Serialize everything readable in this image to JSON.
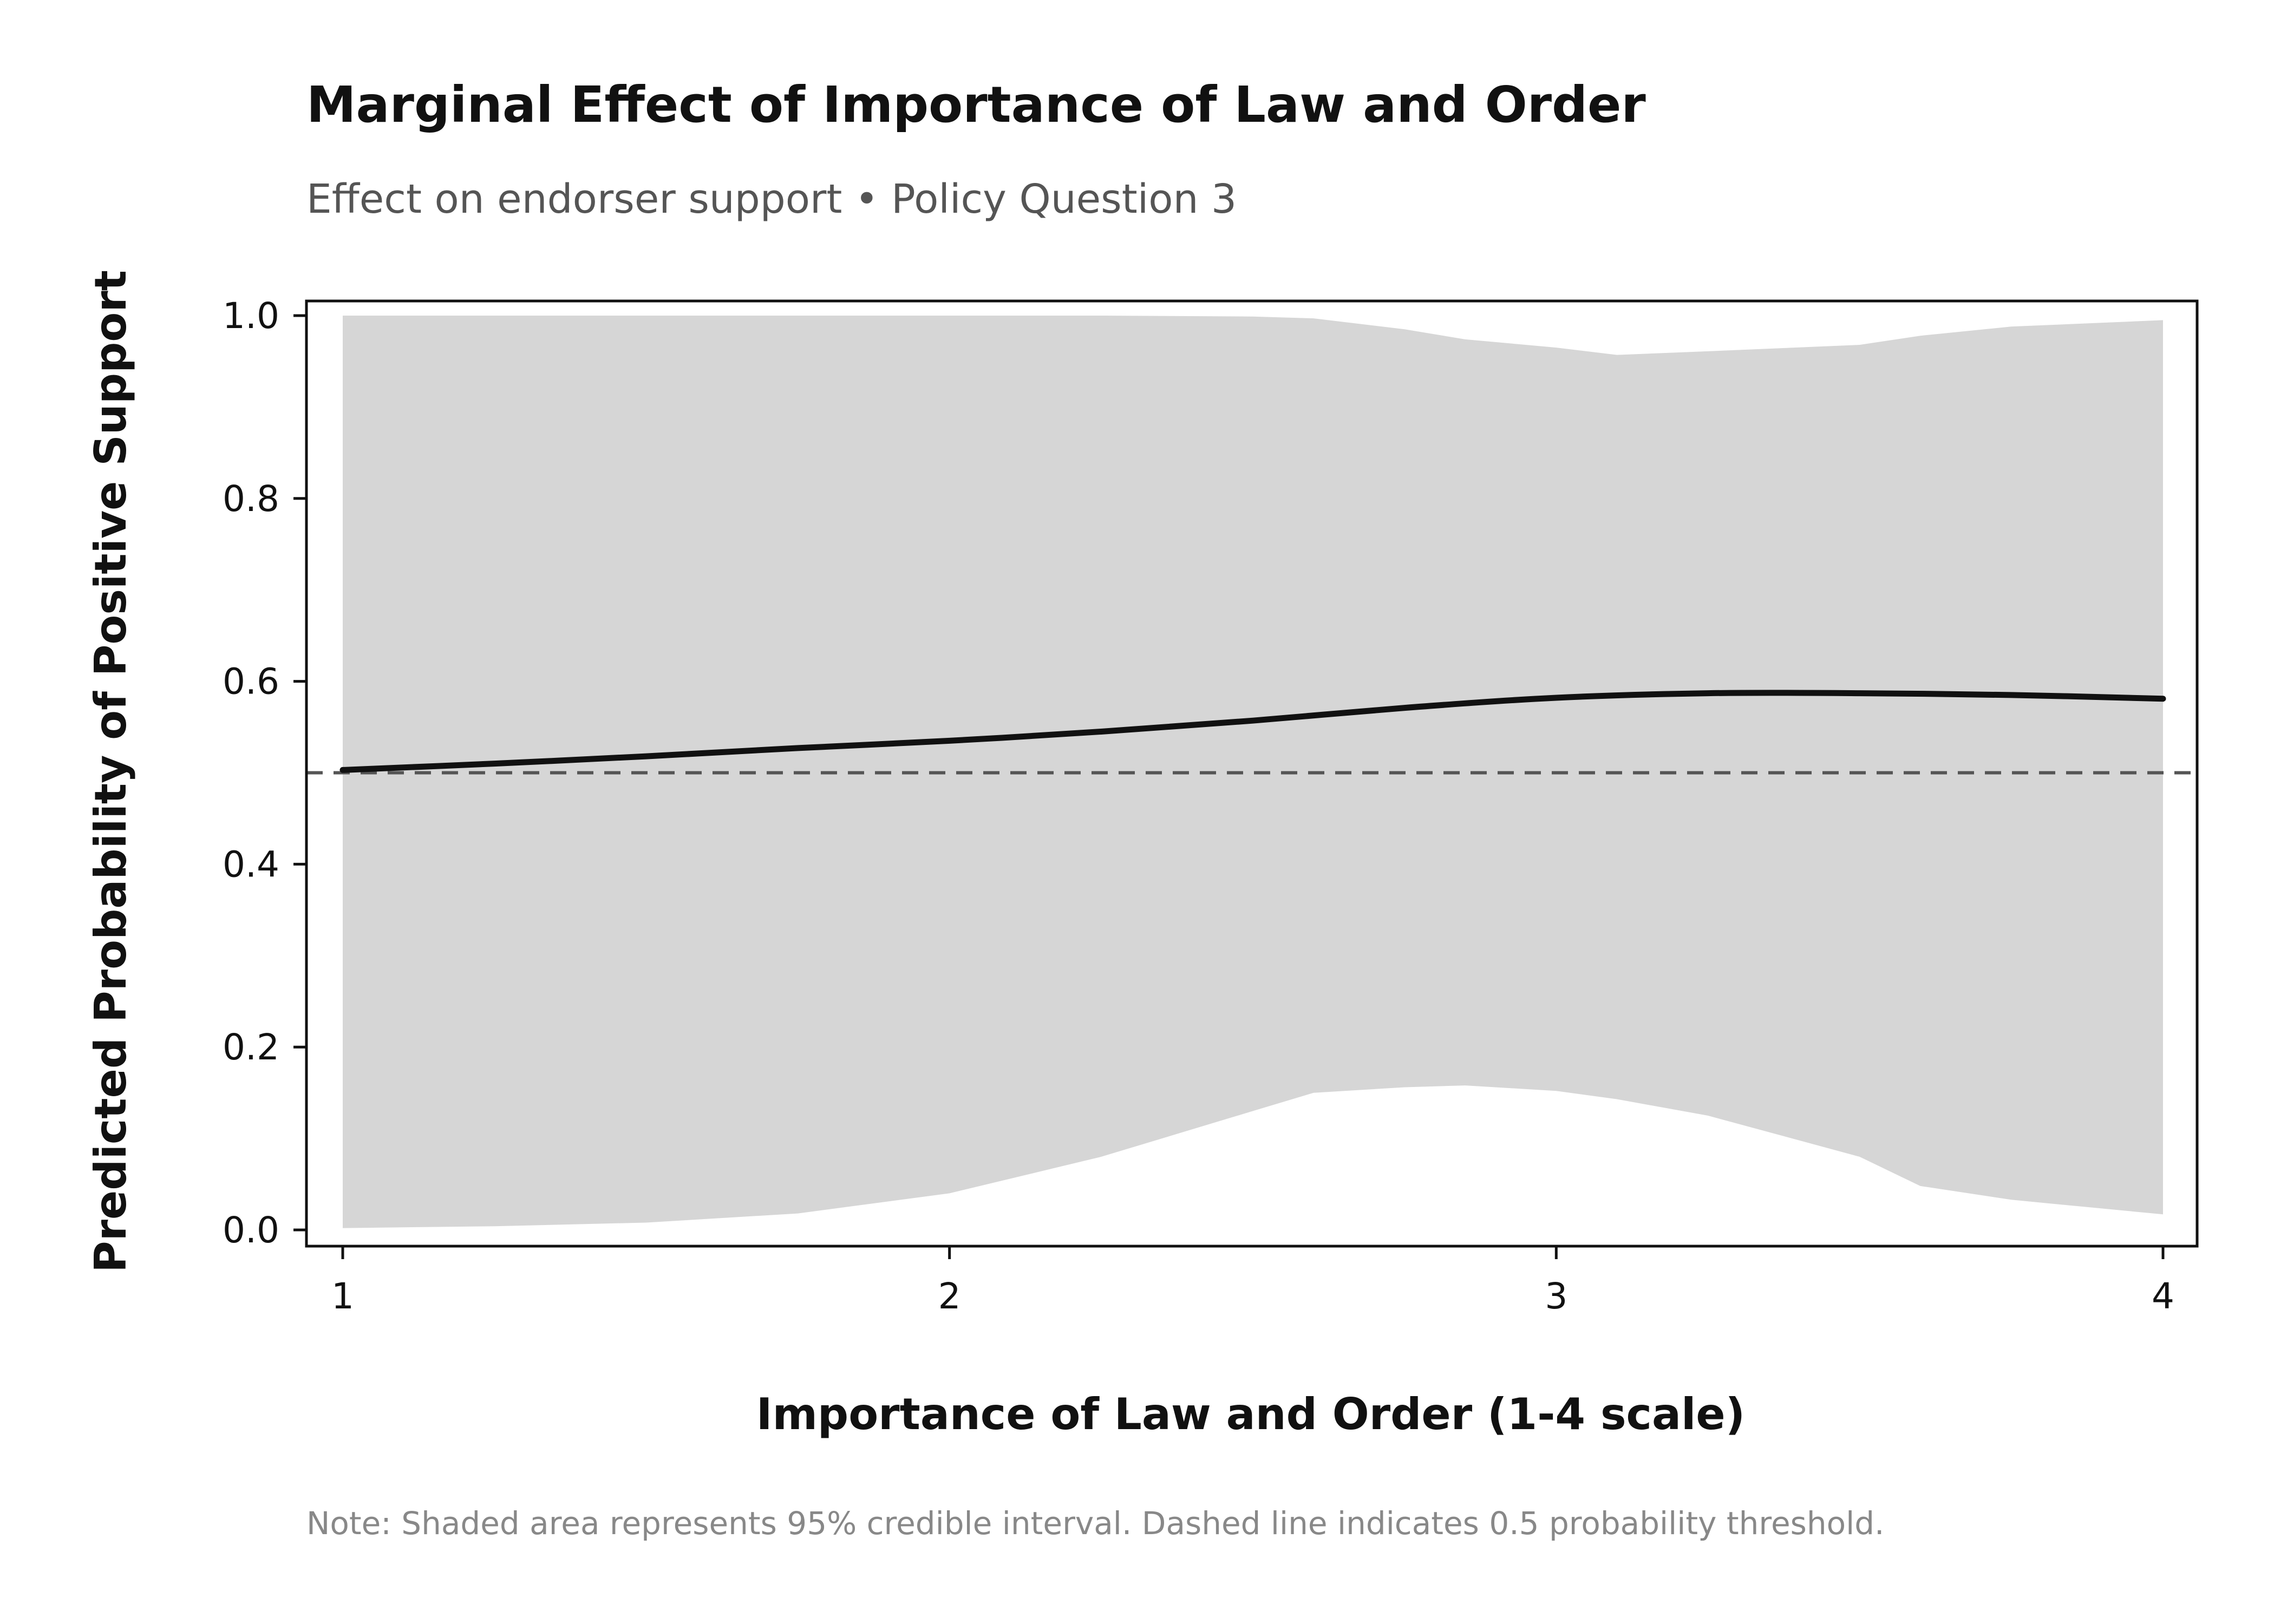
{
  "title": "Marginal Effect of Importance of Law and Order",
  "subtitle": "Effect on endorser support • Policy Question 3",
  "note": "Note: Shaded area represents 95% credible interval. Dashed line indicates 0.5 probability threshold.",
  "chart_data": {
    "type": "line",
    "title": "Marginal Effect of Importance of Law and Order",
    "subtitle": "Effect on endorser support • Policy Question 3",
    "xlabel": "Importance of Law and Order (1-4 scale)",
    "ylabel": "Predicted Probability of Positive Support",
    "xlim": [
      1,
      4
    ],
    "ylim": [
      0.0,
      1.0
    ],
    "x_ticks": [
      "1",
      "2",
      "3",
      "4"
    ],
    "y_ticks": [
      "0.0",
      "0.2",
      "0.4",
      "0.6",
      "0.8",
      "1.0"
    ],
    "grid": false,
    "series": [
      {
        "x": [
          1.0,
          1.25,
          1.5,
          1.75,
          2.0,
          2.25,
          2.5,
          2.75,
          3.0,
          3.25,
          3.5,
          3.75,
          4.0
        ],
        "values": [
          0.503,
          0.51,
          0.518,
          0.527,
          0.535,
          0.545,
          0.557,
          0.571,
          0.582,
          0.587,
          0.587,
          0.585,
          0.581
        ],
        "color": "#111111"
      }
    ],
    "interval": {
      "x": [
        1.0,
        1.25,
        1.5,
        1.75,
        2.0,
        2.25,
        2.5,
        2.6,
        2.75,
        2.85,
        3.0,
        3.1,
        3.25,
        3.5,
        3.6,
        3.75,
        4.0
      ],
      "lower": [
        0.002,
        0.004,
        0.008,
        0.018,
        0.04,
        0.08,
        0.13,
        0.15,
        0.156,
        0.158,
        0.152,
        0.143,
        0.125,
        0.08,
        0.048,
        0.033,
        0.017
      ],
      "upper": [
        1.0,
        1.0,
        1.0,
        1.0,
        1.0,
        1.0,
        0.999,
        0.997,
        0.985,
        0.974,
        0.965,
        0.957,
        0.961,
        0.968,
        0.978,
        0.988,
        0.995
      ],
      "color": "#d6d6d6"
    },
    "reference_line": {
      "y": 0.5,
      "style": "dashed",
      "color": "#555555"
    }
  }
}
